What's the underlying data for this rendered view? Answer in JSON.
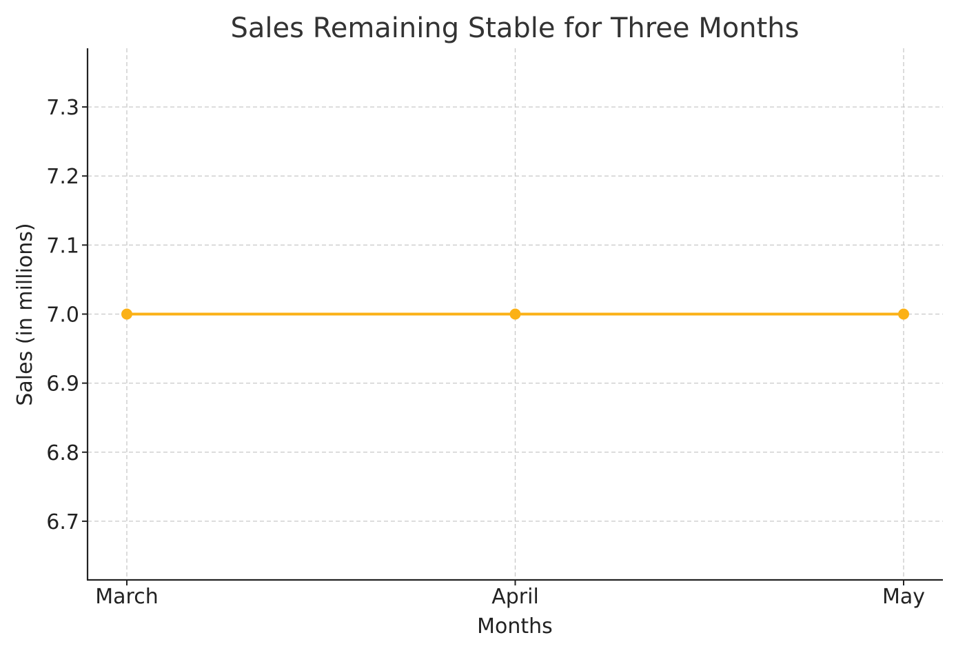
{
  "chart_data": {
    "type": "line",
    "title": "Sales Remaining Stable for Three Months",
    "xlabel": "Months",
    "ylabel": "Sales (in millions)",
    "categories": [
      "March",
      "April",
      "May"
    ],
    "series": [
      {
        "values": [
          7.0,
          7.0,
          7.0
        ]
      }
    ],
    "ylim": [
      6.615,
      7.385
    ],
    "yticks": [
      6.7,
      6.8,
      6.9,
      7.0,
      7.1,
      7.2,
      7.3
    ],
    "ytick_labels": [
      "6.7",
      "6.8",
      "6.9",
      "7.0",
      "7.1",
      "7.2",
      "7.3"
    ],
    "grid": true,
    "line_color": "#FBB116"
  }
}
